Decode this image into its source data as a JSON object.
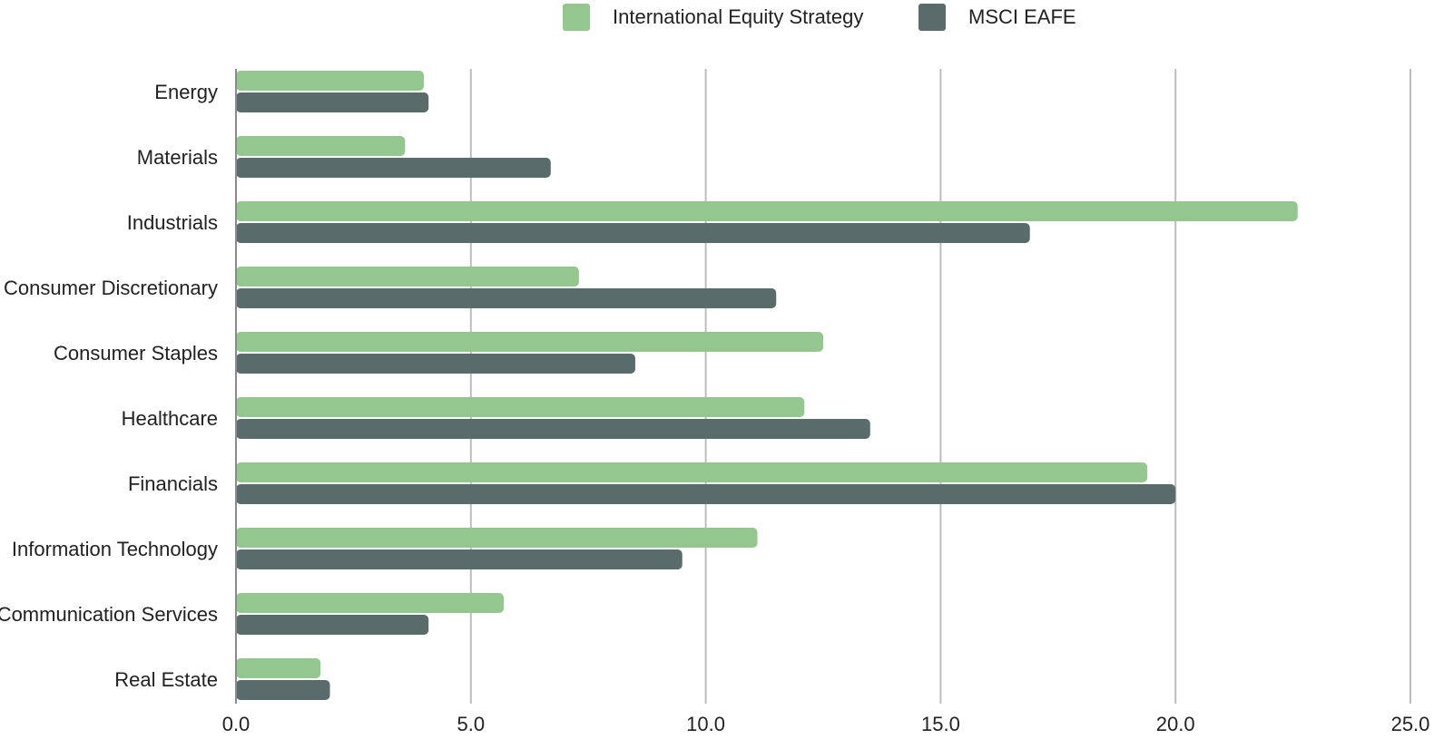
{
  "chart_data": {
    "type": "bar",
    "orientation": "horizontal",
    "categories": [
      "Energy",
      "Materials",
      "Industrials",
      "Consumer Discretionary",
      "Consumer Staples",
      "Healthcare",
      "Financials",
      "Information Technology",
      "Communication Services",
      "Real Estate"
    ],
    "series": [
      {
        "name": "International Equity Strategy",
        "color": "#93c78f",
        "values": [
          4.0,
          3.6,
          22.6,
          7.3,
          12.5,
          12.1,
          19.4,
          11.1,
          5.7,
          1.8
        ]
      },
      {
        "name": "MSCI EAFE",
        "color": "#5a6b6b",
        "values": [
          4.1,
          6.7,
          16.9,
          11.5,
          8.5,
          13.5,
          20.0,
          9.5,
          4.1,
          2.0
        ]
      }
    ],
    "xlim": [
      0,
      25
    ],
    "xticks": [
      "0.0",
      "5.0",
      "10.0",
      "15.0",
      "20.0",
      "25.0"
    ],
    "grid": true,
    "legend_position": "top-center",
    "title": "",
    "xlabel": "",
    "ylabel": ""
  }
}
